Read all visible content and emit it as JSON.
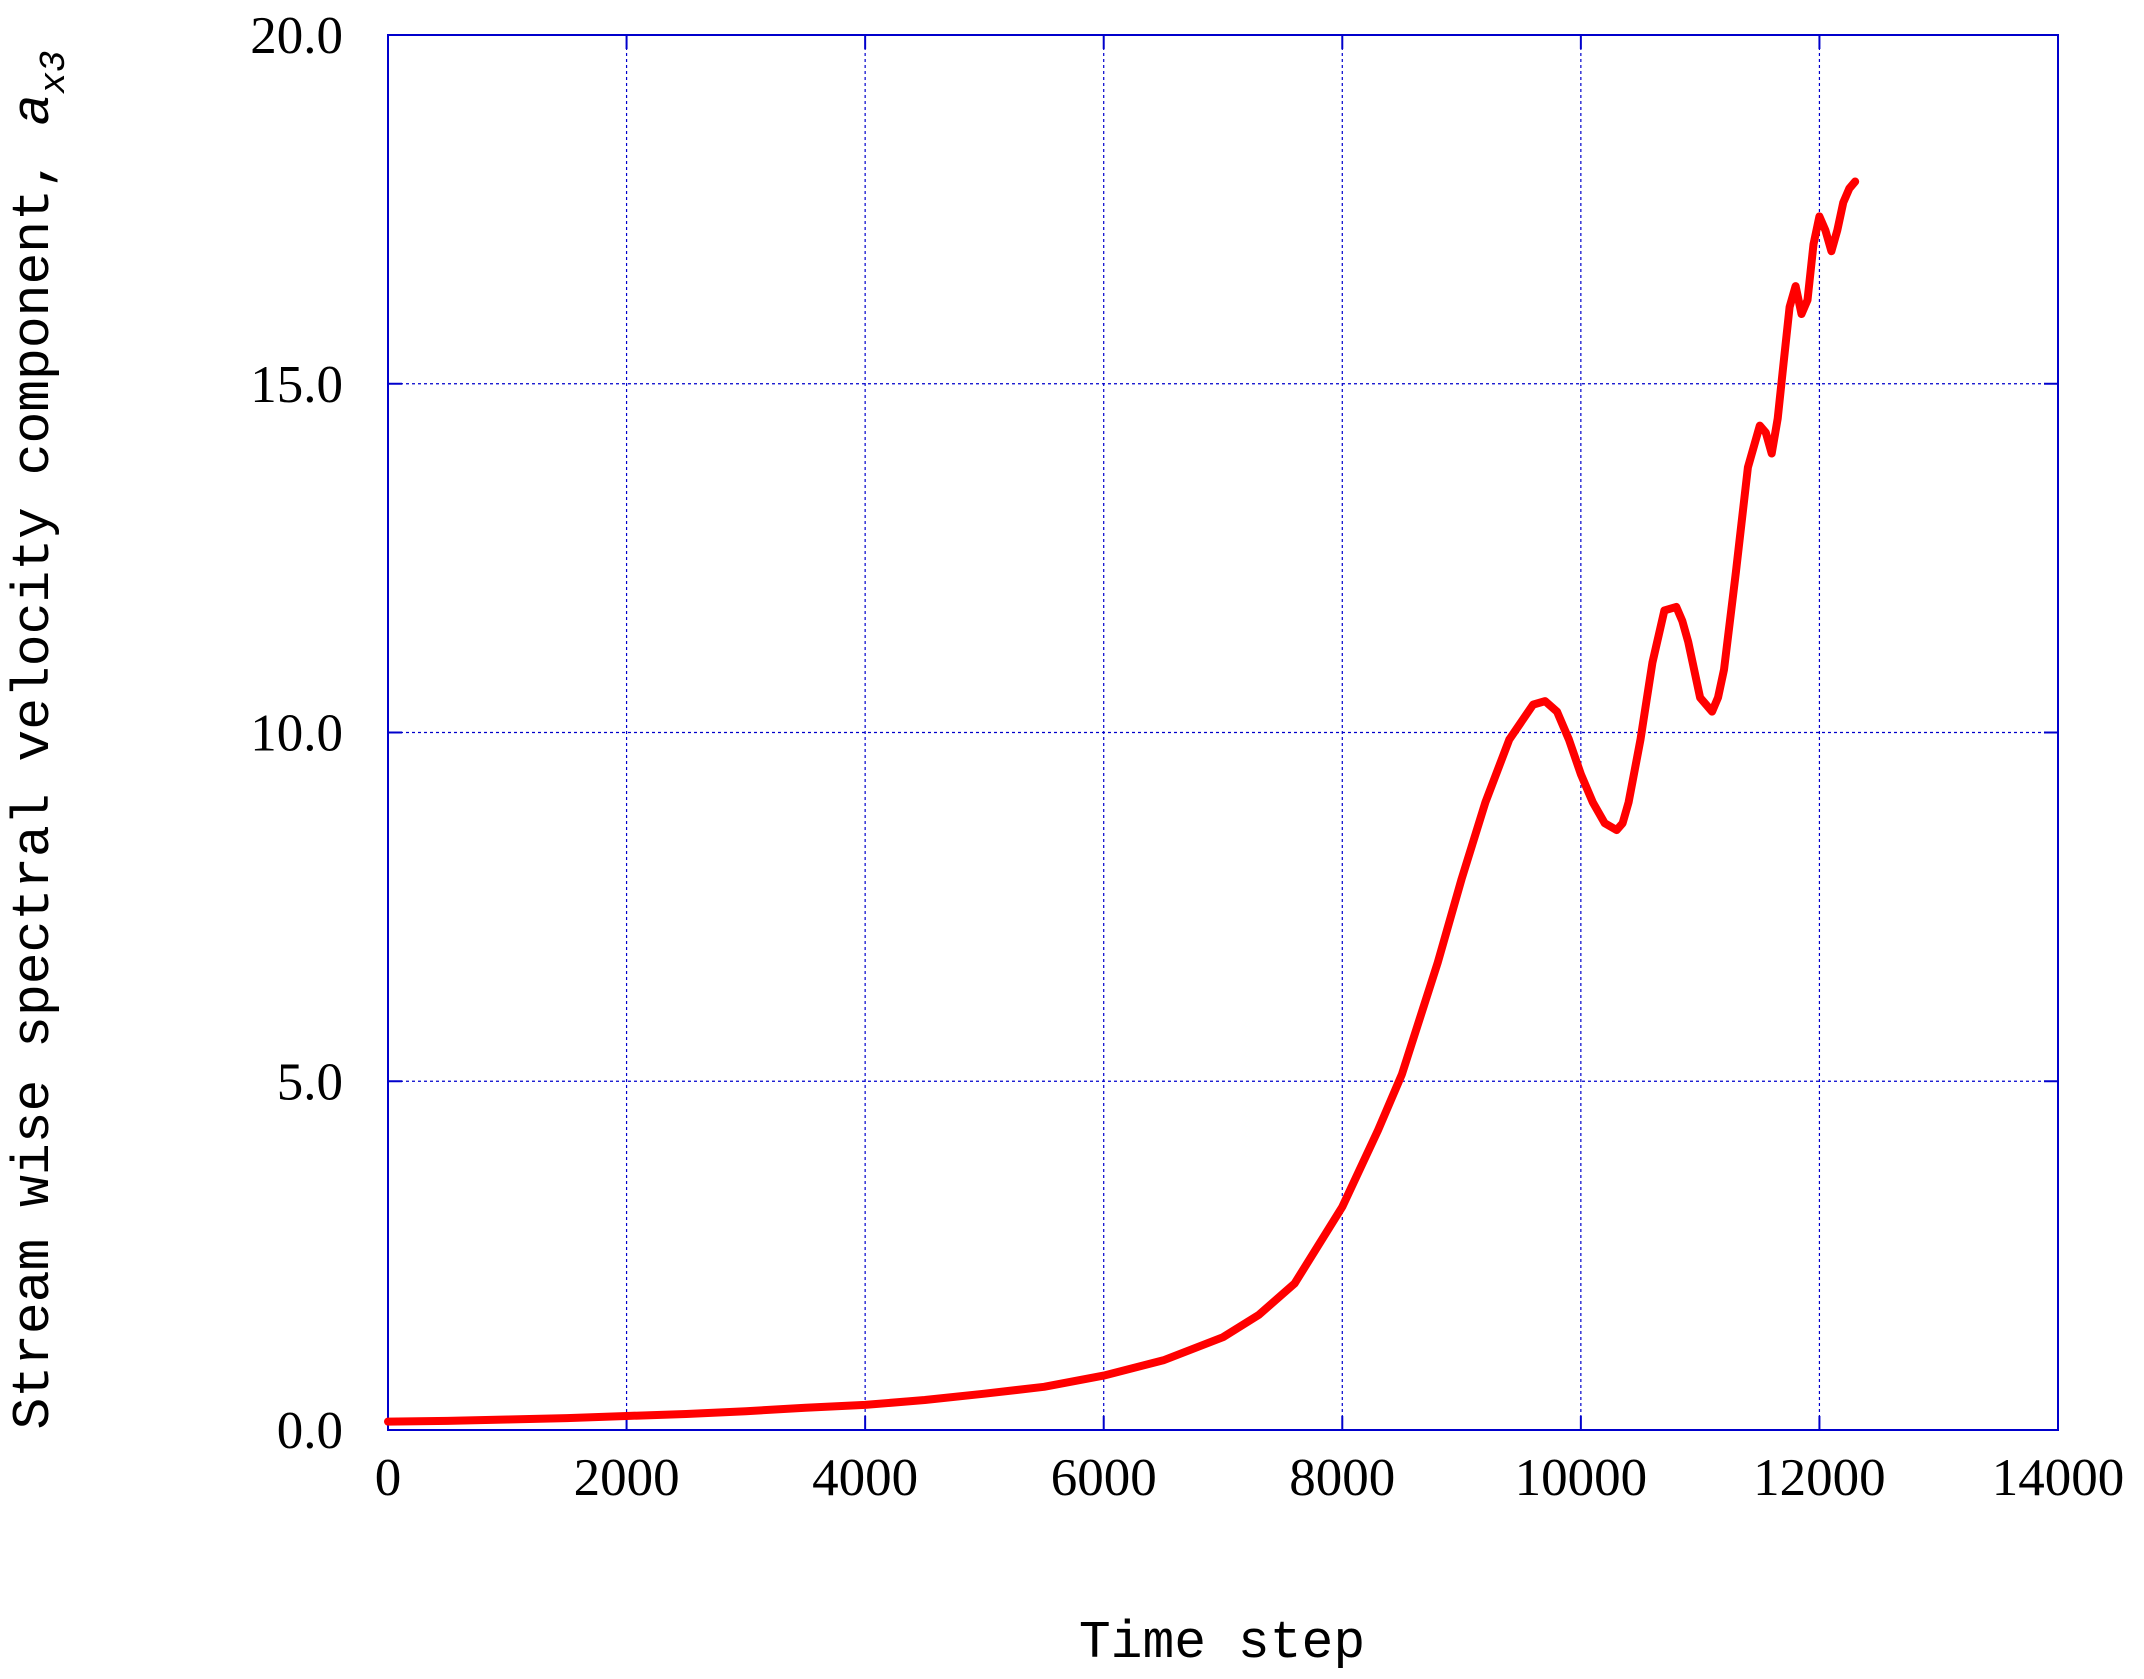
{
  "chart_data": {
    "type": "line",
    "title": "",
    "xlabel": "Time step",
    "ylabel": "Stream wise spectral velocity component, ",
    "ylabel_symbol": "a",
    "ylabel_subscript": "x3",
    "xlim": [
      0,
      14000
    ],
    "ylim": [
      0,
      20
    ],
    "xticks": [
      0,
      2000,
      4000,
      6000,
      8000,
      10000,
      12000,
      14000
    ],
    "xtick_labels": [
      "0",
      "2000",
      "4000",
      "6000",
      "8000",
      "10000",
      "12000",
      "14000"
    ],
    "yticks": [
      0,
      5,
      10,
      15,
      20
    ],
    "ytick_labels": [
      "0.0",
      "5.0",
      "10.0",
      "15.0",
      "20.0"
    ],
    "grid": true,
    "legend": "none",
    "colors": {
      "axis": "#0000cc",
      "grid": "#0000cc",
      "series": "#ff0000"
    },
    "series": [
      {
        "x": [
          0,
          500,
          1000,
          1500,
          2000,
          2500,
          3000,
          3500,
          4000,
          4500,
          5000,
          5500,
          6000,
          6500,
          7000,
          7300,
          7600,
          8000,
          8300,
          8500,
          8800,
          9000,
          9200,
          9400,
          9600,
          9700,
          9800,
          9900,
          10000,
          10100,
          10200,
          10300,
          10350,
          10400,
          10500,
          10600,
          10700,
          10800,
          10850,
          10900,
          11000,
          11100,
          11150,
          11200,
          11300,
          11400,
          11500,
          11550,
          11600,
          11650,
          11700,
          11750,
          11800,
          11850,
          11900,
          11950,
          12000,
          12050,
          12100,
          12150,
          12200,
          12250,
          12300
        ],
        "y": [
          0.12,
          0.13,
          0.15,
          0.17,
          0.2,
          0.23,
          0.27,
          0.32,
          0.36,
          0.43,
          0.52,
          0.62,
          0.78,
          1.0,
          1.33,
          1.65,
          2.1,
          3.2,
          4.3,
          5.1,
          6.7,
          7.9,
          9.0,
          9.9,
          10.4,
          10.45,
          10.3,
          9.9,
          9.4,
          9.0,
          8.7,
          8.6,
          8.7,
          9.0,
          9.9,
          11.0,
          11.75,
          11.8,
          11.6,
          11.3,
          10.5,
          10.3,
          10.5,
          10.9,
          12.3,
          13.8,
          14.4,
          14.3,
          14.0,
          14.5,
          15.3,
          16.1,
          16.4,
          16.0,
          16.2,
          17.0,
          17.4,
          17.2,
          16.9,
          17.2,
          17.6,
          17.8,
          17.9
        ]
      }
    ]
  }
}
